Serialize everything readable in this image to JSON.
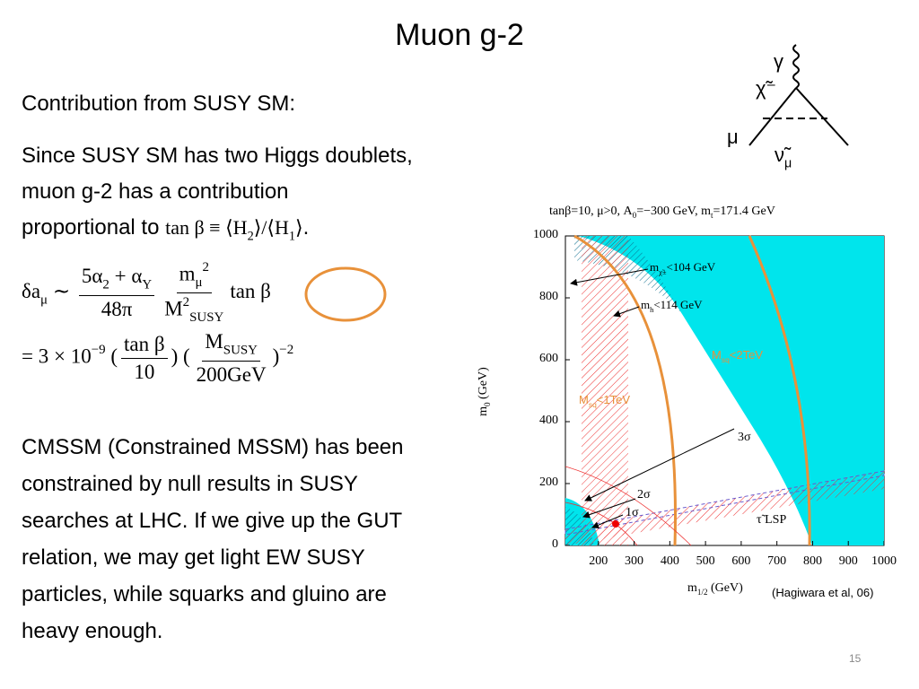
{
  "title": "Muon g-2",
  "intro": "Contribution from SUSY SM:",
  "para1": [
    "Since SUSY SM has two Higgs doublets,",
    "muon g-2 has a contribution",
    "proportional to "
  ],
  "inline_math": [
    {
      "text": "tan β ≡ ⟨H"
    },
    {
      "sub": "2"
    },
    {
      "text": "⟩/⟨H"
    },
    {
      "sub": "1"
    },
    {
      "text": "⟩"
    }
  ],
  "para1_end": ".",
  "formula": {
    "line1": [
      {
        "text": "δa"
      },
      {
        "sub": "μ"
      },
      {
        "text": " ∼ "
      },
      {
        "num": [
          {
            "text": "5α"
          },
          {
            "sub": "2"
          },
          {
            "text": " + α"
          },
          {
            "sub": "Y"
          }
        ],
        "den": [
          {
            "text": "48π"
          }
        ]
      },
      {
        "num": [
          {
            "text": "m"
          },
          {
            "sub": "μ"
          },
          {
            "sup": "2"
          }
        ],
        "den": [
          {
            "text": "M"
          },
          {
            "sup": "2"
          },
          {
            "sub": "SUSY"
          }
        ]
      },
      {
        "text": "tan β"
      }
    ],
    "line2": [
      {
        "text": "= 3 × 10"
      },
      {
        "sup": "−9"
      },
      {
        "text": " ("
      },
      {
        "num": [
          {
            "text": "tan β"
          }
        ],
        "den": [
          {
            "text": "10"
          }
        ]
      },
      {
        "text": ") ("
      },
      {
        "num": [
          {
            "text": "M"
          },
          {
            "sub": "SUSY"
          }
        ],
        "den": [
          {
            "text": "200GeV"
          }
        ]
      },
      {
        "text": ")"
      },
      {
        "sup": "−2"
      }
    ]
  },
  "para2": [
    "CMSSM (Constrained MSSM) has been",
    "constrained by null results in SUSY",
    "searches at LHC.  If we give up the GUT",
    "relation, we may get light EW SUSY",
    "particles, while squarks and gluino are",
    "heavy enough."
  ],
  "diagram": {
    "photon": "γ",
    "chargino": "χ̃⁻",
    "muon": "μ",
    "sneutrino": [
      {
        "text": "ν̃"
      },
      {
        "sub": "μ"
      }
    ]
  },
  "plot": {
    "header": [
      {
        "text": "tanβ=10, μ>0, A"
      },
      {
        "sub": "0"
      },
      {
        "text": "=−300 GeV, m"
      },
      {
        "sub": "t"
      },
      {
        "text": "=171.4 GeV"
      }
    ],
    "xlabel": [
      {
        "text": "m"
      },
      {
        "sub": "1/2"
      },
      {
        "text": " (GeV)"
      }
    ],
    "ylabel": [
      {
        "text": "m"
      },
      {
        "sub": "0"
      },
      {
        "text": " (GeV)"
      }
    ],
    "xlim": [
      100,
      1000
    ],
    "ylim": [
      0,
      1000
    ],
    "xticks": [
      200,
      300,
      400,
      500,
      600,
      700,
      800,
      900,
      1000
    ],
    "yticks": [
      0,
      200,
      400,
      600,
      800,
      1000
    ],
    "annotations": {
      "chargino": [
        {
          "text": "m"
        },
        {
          "sub": "χ̃±"
        },
        {
          "text": "<104 GeV"
        }
      ],
      "higgs": [
        {
          "text": "m"
        },
        {
          "sub": "h"
        },
        {
          "text": "<114 GeV"
        }
      ],
      "msq2": [
        {
          "text": "M"
        },
        {
          "sub": "sq"
        },
        {
          "text": "<2TeV"
        }
      ],
      "msq1": [
        {
          "text": "M"
        },
        {
          "sub": "sq"
        },
        {
          "text": "<1TeV"
        }
      ],
      "s3": "3σ",
      "s2": "2σ",
      "s1": "1σ",
      "lsp": "τ̃ LSP"
    },
    "caption": "(Hagiwara et al, 06)"
  },
  "page_number": "15"
}
